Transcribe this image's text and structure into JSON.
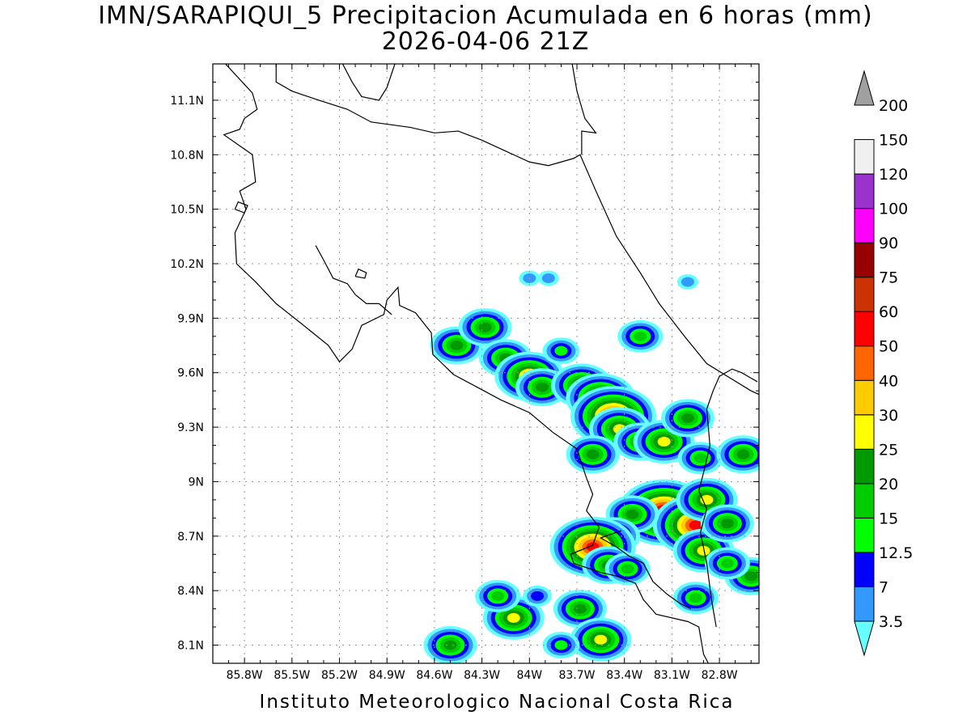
{
  "map": {
    "title": "IMN/SARAPIQUI_5 Precipitacion Acumulada en 6 horas (mm)",
    "subtitle": "2026-04-06 21Z",
    "footer": "Instituto Meteorologico Nacional Costa Rica",
    "lon_range": [
      -86.0,
      -82.55
    ],
    "lat_range": [
      8.0,
      11.3
    ],
    "x_ticks": [
      {
        "value": -85.8,
        "label": "85.8W"
      },
      {
        "value": -85.5,
        "label": "85.5W"
      },
      {
        "value": -85.2,
        "label": "85.2W"
      },
      {
        "value": -84.9,
        "label": "84.9W"
      },
      {
        "value": -84.6,
        "label": "84.6W"
      },
      {
        "value": -84.3,
        "label": "84.3W"
      },
      {
        "value": -84.0,
        "label": "84W"
      },
      {
        "value": -83.7,
        "label": "83.7W"
      },
      {
        "value": -83.4,
        "label": "83.4W"
      },
      {
        "value": -83.1,
        "label": "83.1W"
      },
      {
        "value": -82.8,
        "label": "82.8W"
      }
    ],
    "y_ticks": [
      {
        "value": 8.1,
        "label": "8.1N"
      },
      {
        "value": 8.4,
        "label": "8.4N"
      },
      {
        "value": 8.7,
        "label": "8.7N"
      },
      {
        "value": 9.0,
        "label": "9N"
      },
      {
        "value": 9.3,
        "label": "9.3N"
      },
      {
        "value": 9.6,
        "label": "9.6N"
      },
      {
        "value": 9.9,
        "label": "9.9N"
      },
      {
        "value": 10.2,
        "label": "10.2N"
      },
      {
        "value": 10.5,
        "label": "10.5N"
      },
      {
        "value": 10.8,
        "label": "10.8N"
      },
      {
        "value": 11.1,
        "label": "11.1N"
      }
    ],
    "grid": true,
    "colorbar": {
      "placement": "right",
      "levels": [
        "3.5",
        "7",
        "12.5",
        "15",
        "20",
        "25",
        "30",
        "40",
        "50",
        "60",
        "75",
        "90",
        "100",
        "120",
        "150",
        "200"
      ],
      "colors": [
        "#66ffff",
        "#3399ff",
        "#0000ff",
        "#00ff00",
        "#00cc00",
        "#009900",
        "#ffff00",
        "#ffcc00",
        "#ff6600",
        "#ff0000",
        "#cc3300",
        "#990000",
        "#ff00ff",
        "#9933cc",
        "#f0f0f0",
        "#a0a0a0"
      ]
    },
    "coastlines": [
      [
        [
          -85.92,
          11.3
        ],
        [
          -85.75,
          11.14
        ],
        [
          -85.72,
          11.05
        ],
        [
          -85.8,
          11.0
        ],
        [
          -85.83,
          10.94
        ],
        [
          -85.93,
          10.91
        ],
        [
          -85.75,
          10.8
        ],
        [
          -85.73,
          10.65
        ],
        [
          -85.83,
          10.6
        ],
        [
          -85.79,
          10.5
        ],
        [
          -85.86,
          10.37
        ],
        [
          -85.85,
          10.2
        ],
        [
          -85.73,
          10.1
        ],
        [
          -85.6,
          9.98
        ],
        [
          -85.44,
          9.87
        ],
        [
          -85.27,
          9.75
        ],
        [
          -85.2,
          9.66
        ],
        [
          -85.12,
          9.73
        ],
        [
          -85.06,
          9.86
        ],
        [
          -84.92,
          9.92
        ],
        [
          -84.9,
          10.0
        ],
        [
          -84.83,
          10.07
        ],
        [
          -84.82,
          9.97
        ],
        [
          -84.72,
          9.93
        ],
        [
          -84.62,
          9.82
        ],
        [
          -84.61,
          9.7
        ],
        [
          -84.48,
          9.59
        ],
        [
          -84.33,
          9.52
        ],
        [
          -84.18,
          9.45
        ],
        [
          -84.0,
          9.38
        ],
        [
          -83.85,
          9.27
        ],
        [
          -83.7,
          9.18
        ],
        [
          -83.64,
          9.02
        ],
        [
          -83.6,
          8.93
        ],
        [
          -83.64,
          8.84
        ],
        [
          -83.56,
          8.75
        ],
        [
          -83.6,
          8.65
        ],
        [
          -83.74,
          8.6
        ],
        [
          -83.72,
          8.55
        ],
        [
          -83.55,
          8.5
        ],
        [
          -83.45,
          8.48
        ],
        [
          -83.33,
          8.44
        ],
        [
          -83.28,
          8.35
        ],
        [
          -83.2,
          8.27
        ],
        [
          -83.0,
          8.23
        ],
        [
          -82.93,
          8.2
        ],
        [
          -82.9,
          8.05
        ],
        [
          -82.87,
          8.0
        ]
      ],
      [
        [
          -83.42,
          8.73
        ],
        [
          -83.55,
          8.69
        ],
        [
          -83.45,
          8.64
        ],
        [
          -83.37,
          8.59
        ],
        [
          -83.28,
          8.55
        ],
        [
          -83.22,
          8.45
        ],
        [
          -83.13,
          8.38
        ],
        [
          -83.05,
          8.33
        ],
        [
          -82.98,
          8.3
        ]
      ],
      [
        [
          -85.35,
          10.3
        ],
        [
          -85.3,
          10.22
        ],
        [
          -85.24,
          10.12
        ],
        [
          -85.15,
          10.09
        ],
        [
          -85.1,
          10.03
        ],
        [
          -85.03,
          9.98
        ],
        [
          -84.95,
          9.98
        ],
        [
          -84.87,
          9.92
        ]
      ],
      [
        [
          -85.6,
          11.3
        ],
        [
          -85.6,
          11.2
        ],
        [
          -85.5,
          11.15
        ],
        [
          -85.33,
          11.1
        ],
        [
          -85.15,
          11.05
        ],
        [
          -85.0,
          10.98
        ],
        [
          -84.75,
          10.95
        ],
        [
          -84.6,
          10.92
        ],
        [
          -84.45,
          10.93
        ],
        [
          -84.3,
          10.88
        ],
        [
          -84.15,
          10.82
        ],
        [
          -84.0,
          10.76
        ],
        [
          -83.88,
          10.74
        ],
        [
          -83.72,
          10.78
        ],
        [
          -83.68,
          10.8
        ],
        [
          -83.58,
          10.6
        ],
        [
          -83.45,
          10.35
        ],
        [
          -83.3,
          10.15
        ],
        [
          -83.18,
          9.98
        ],
        [
          -83.02,
          9.8
        ],
        [
          -82.88,
          9.65
        ],
        [
          -82.75,
          9.58
        ],
        [
          -82.6,
          9.5
        ],
        [
          -82.55,
          9.48
        ]
      ],
      [
        [
          -83.73,
          11.3
        ],
        [
          -83.7,
          11.15
        ],
        [
          -83.65,
          11.0
        ],
        [
          -83.58,
          10.92
        ],
        [
          -83.67,
          10.93
        ],
        [
          -83.67,
          10.8
        ]
      ],
      [
        [
          -85.18,
          11.3
        ],
        [
          -85.12,
          11.2
        ],
        [
          -85.06,
          11.12
        ],
        [
          -84.95,
          11.1
        ],
        [
          -84.9,
          11.17
        ],
        [
          -84.85,
          11.3
        ]
      ],
      [
        [
          -82.56,
          9.55
        ],
        [
          -82.6,
          9.57
        ],
        [
          -82.66,
          9.6
        ],
        [
          -82.72,
          9.62
        ],
        [
          -82.8,
          9.58
        ],
        [
          -82.84,
          9.5
        ],
        [
          -82.88,
          9.4
        ],
        [
          -82.86,
          9.2
        ],
        [
          -82.9,
          9.05
        ],
        [
          -82.93,
          8.95
        ],
        [
          -82.88,
          8.85
        ],
        [
          -82.92,
          8.72
        ],
        [
          -82.88,
          8.55
        ],
        [
          -82.85,
          8.35
        ],
        [
          -82.82,
          8.2
        ]
      ]
    ],
    "islands": [
      [
        [
          -85.86,
          10.5
        ],
        [
          -85.8,
          10.48
        ],
        [
          -85.78,
          10.52
        ],
        [
          -85.84,
          10.54
        ],
        [
          -85.86,
          10.5
        ]
      ],
      [
        [
          -85.1,
          10.13
        ],
        [
          -85.04,
          10.12
        ],
        [
          -85.03,
          10.15
        ],
        [
          -85.08,
          10.17
        ],
        [
          -85.1,
          10.13
        ]
      ]
    ],
    "precip_cells": [
      {
        "lon": -84.46,
        "lat": 9.75,
        "value": 25
      },
      {
        "lon": -84.28,
        "lat": 9.85,
        "value": 25
      },
      {
        "lon": -84.15,
        "lat": 9.68,
        "value": 25
      },
      {
        "lon": -84.0,
        "lat": 9.58,
        "value": 40
      },
      {
        "lon": -83.92,
        "lat": 9.52,
        "value": 25
      },
      {
        "lon": -83.8,
        "lat": 9.72,
        "value": 15
      },
      {
        "lon": -83.67,
        "lat": 9.53,
        "value": 30
      },
      {
        "lon": -83.55,
        "lat": 9.46,
        "value": 40
      },
      {
        "lon": -83.47,
        "lat": 9.36,
        "value": 60
      },
      {
        "lon": -83.43,
        "lat": 9.29,
        "value": 30
      },
      {
        "lon": -83.3,
        "lat": 9.22,
        "value": 25
      },
      {
        "lon": -83.15,
        "lat": 9.22,
        "value": 30
      },
      {
        "lon": -83.0,
        "lat": 9.35,
        "value": 25
      },
      {
        "lon": -82.92,
        "lat": 9.13,
        "value": 20
      },
      {
        "lon": -82.65,
        "lat": 9.15,
        "value": 25
      },
      {
        "lon": -83.6,
        "lat": 9.15,
        "value": 25
      },
      {
        "lon": -83.15,
        "lat": 8.83,
        "value": 75
      },
      {
        "lon": -82.95,
        "lat": 8.76,
        "value": 60
      },
      {
        "lon": -82.88,
        "lat": 8.9,
        "value": 30
      },
      {
        "lon": -82.9,
        "lat": 8.62,
        "value": 30
      },
      {
        "lon": -82.75,
        "lat": 8.77,
        "value": 25
      },
      {
        "lon": -82.6,
        "lat": 8.48,
        "value": 25
      },
      {
        "lon": -82.95,
        "lat": 8.36,
        "value": 20
      },
      {
        "lon": -83.35,
        "lat": 8.82,
        "value": 25
      },
      {
        "lon": -83.47,
        "lat": 8.7,
        "value": 25
      },
      {
        "lon": -83.6,
        "lat": 8.64,
        "value": 60
      },
      {
        "lon": -83.5,
        "lat": 8.54,
        "value": 25
      },
      {
        "lon": -83.38,
        "lat": 8.52,
        "value": 20
      },
      {
        "lon": -84.1,
        "lat": 8.25,
        "value": 30
      },
      {
        "lon": -84.2,
        "lat": 8.37,
        "value": 20
      },
      {
        "lon": -83.95,
        "lat": 8.37,
        "value": 12.5
      },
      {
        "lon": -83.68,
        "lat": 8.3,
        "value": 25
      },
      {
        "lon": -83.55,
        "lat": 8.13,
        "value": 30
      },
      {
        "lon": -84.5,
        "lat": 8.1,
        "value": 25
      },
      {
        "lon": -83.8,
        "lat": 8.1,
        "value": 15
      },
      {
        "lon": -84.0,
        "lat": 10.12,
        "value": 7
      },
      {
        "lon": -83.88,
        "lat": 10.12,
        "value": 7
      },
      {
        "lon": -83.0,
        "lat": 10.1,
        "value": 7
      },
      {
        "lon": -83.3,
        "lat": 9.8,
        "value": 20
      },
      {
        "lon": -82.75,
        "lat": 8.55,
        "value": 20
      }
    ]
  }
}
